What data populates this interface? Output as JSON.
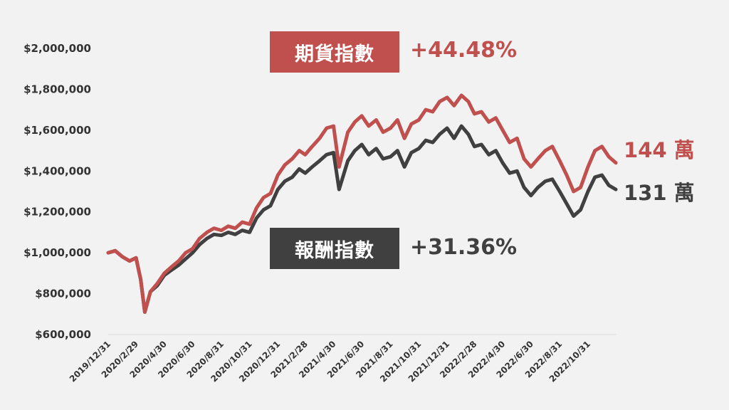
{
  "chart_data": {
    "type": "line",
    "ylim": [
      600000,
      2000000
    ],
    "yticks": [
      600000,
      800000,
      1000000,
      1200000,
      1400000,
      1600000,
      1800000,
      2000000
    ],
    "ytick_labels": [
      "$600,000",
      "$800,000",
      "$1,000,000",
      "$1,200,000",
      "$1,400,000",
      "$1,600,000",
      "$1,800,000",
      "$2,000,000"
    ],
    "x_tick_labels": [
      "2019/12/31",
      "2020/2/29",
      "2020/4/30",
      "2020/6/30",
      "2020/8/31",
      "2020/10/31",
      "2020/12/31",
      "2021/2/28",
      "2021/4/30",
      "2021/6/30",
      "2021/8/31",
      "2021/10/31",
      "2021/12/31",
      "2022/2/28",
      "2022/4/30",
      "2022/6/30",
      "2022/8/31",
      "2022/10/31"
    ],
    "x": [
      "2019/12/31",
      "2020/1/15",
      "2020/1/31",
      "2020/2/15",
      "2020/2/29",
      "2020/3/10",
      "2020/3/19",
      "2020/3/31",
      "2020/4/15",
      "2020/4/30",
      "2020/5/15",
      "2020/5/31",
      "2020/6/15",
      "2020/6/30",
      "2020/7/15",
      "2020/7/31",
      "2020/8/15",
      "2020/8/31",
      "2020/9/15",
      "2020/9/30",
      "2020/10/15",
      "2020/10/31",
      "2020/11/15",
      "2020/11/30",
      "2020/12/15",
      "2020/12/31",
      "2021/1/15",
      "2021/1/31",
      "2021/2/15",
      "2021/2/28",
      "2021/3/15",
      "2021/3/31",
      "2021/4/15",
      "2021/4/30",
      "2021/5/12",
      "2021/5/31",
      "2021/6/15",
      "2021/6/30",
      "2021/7/15",
      "2021/7/31",
      "2021/8/15",
      "2021/8/31",
      "2021/9/15",
      "2021/9/30",
      "2021/10/15",
      "2021/10/31",
      "2021/11/15",
      "2021/11/30",
      "2021/12/15",
      "2021/12/31",
      "2022/1/15",
      "2022/1/31",
      "2022/2/15",
      "2022/2/28",
      "2022/3/15",
      "2022/3/31",
      "2022/4/15",
      "2022/4/30",
      "2022/5/15",
      "2022/5/31",
      "2022/6/15",
      "2022/6/30",
      "2022/7/15",
      "2022/7/31",
      "2022/8/15",
      "2022/8/31",
      "2022/9/15",
      "2022/9/30",
      "2022/10/15",
      "2022/10/31",
      "2022/11/15",
      "2022/11/30",
      "2022/12/15",
      "2022/12/30"
    ],
    "series": [
      {
        "name": "期貨指數",
        "color": "#c0504d",
        "values": [
          1000000,
          1010000,
          980000,
          960000,
          975000,
          870000,
          710000,
          810000,
          850000,
          900000,
          930000,
          960000,
          1000000,
          1020000,
          1070000,
          1100000,
          1120000,
          1110000,
          1130000,
          1120000,
          1150000,
          1140000,
          1220000,
          1270000,
          1290000,
          1380000,
          1430000,
          1460000,
          1500000,
          1480000,
          1520000,
          1560000,
          1610000,
          1620000,
          1420000,
          1590000,
          1640000,
          1670000,
          1620000,
          1650000,
          1590000,
          1610000,
          1650000,
          1560000,
          1630000,
          1650000,
          1700000,
          1690000,
          1740000,
          1760000,
          1720000,
          1770000,
          1740000,
          1680000,
          1690000,
          1640000,
          1660000,
          1600000,
          1540000,
          1560000,
          1460000,
          1420000,
          1460000,
          1500000,
          1520000,
          1450000,
          1380000,
          1300000,
          1320000,
          1420000,
          1500000,
          1520000,
          1470000,
          1440000
        ]
      },
      {
        "name": "報酬指數",
        "color": "#404040",
        "values": [
          1000000,
          1010000,
          980000,
          960000,
          975000,
          870000,
          710000,
          810000,
          840000,
          890000,
          915000,
          940000,
          970000,
          1000000,
          1040000,
          1070000,
          1090000,
          1085000,
          1100000,
          1090000,
          1110000,
          1100000,
          1170000,
          1210000,
          1230000,
          1310000,
          1350000,
          1370000,
          1410000,
          1390000,
          1420000,
          1450000,
          1480000,
          1490000,
          1310000,
          1450000,
          1500000,
          1530000,
          1480000,
          1510000,
          1460000,
          1470000,
          1500000,
          1420000,
          1490000,
          1510000,
          1550000,
          1540000,
          1580000,
          1610000,
          1560000,
          1620000,
          1580000,
          1520000,
          1530000,
          1480000,
          1500000,
          1440000,
          1390000,
          1400000,
          1320000,
          1280000,
          1320000,
          1350000,
          1360000,
          1300000,
          1240000,
          1180000,
          1210000,
          1300000,
          1370000,
          1380000,
          1330000,
          1310000
        ]
      }
    ]
  },
  "legend": {
    "futures_label": "期貨指數",
    "futures_pct": "+44.48%",
    "returns_label": "報酬指數",
    "returns_pct": "+31.36%"
  },
  "end_labels": {
    "futures": "144 萬",
    "returns": "131 萬"
  },
  "colors": {
    "futures": "#c0504d",
    "returns": "#404040",
    "background": "#f2f2f2",
    "axis": "#d9d9d9",
    "text": "#333333"
  }
}
